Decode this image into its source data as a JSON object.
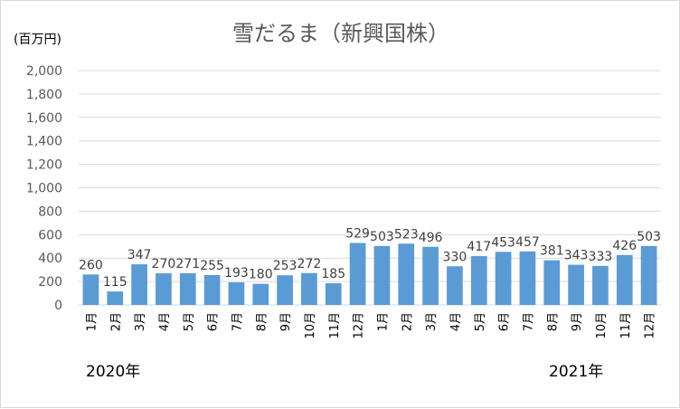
{
  "chart_data": {
    "type": "bar",
    "title": "雪だるま（新興国株）",
    "unit_label": "(百万円)",
    "ylim": [
      0,
      2000
    ],
    "yticks": [
      "0",
      "200",
      "400",
      "600",
      "800",
      "1,000",
      "1,200",
      "1,400",
      "1,600",
      "1,800",
      "2,000"
    ],
    "ytick_values": [
      0,
      200,
      400,
      600,
      800,
      1000,
      1200,
      1400,
      1600,
      1800,
      2000
    ],
    "categories": [
      "1月",
      "2月",
      "3月",
      "4月",
      "5月",
      "6月",
      "7月",
      "8月",
      "9月",
      "10月",
      "11月",
      "12月",
      "1月",
      "2月",
      "3月",
      "4月",
      "5月",
      "6月",
      "7月",
      "8月",
      "9月",
      "10月",
      "11月",
      "12月"
    ],
    "values": [
      260,
      115,
      347,
      270,
      271,
      255,
      193,
      180,
      253,
      272,
      185,
      529,
      503,
      523,
      496,
      330,
      417,
      453,
      457,
      381,
      343,
      333,
      426,
      503
    ],
    "year_labels": [
      "2020年",
      "2021年"
    ],
    "grid": true,
    "bar_color": "#5b9bd5",
    "legend": "none"
  }
}
